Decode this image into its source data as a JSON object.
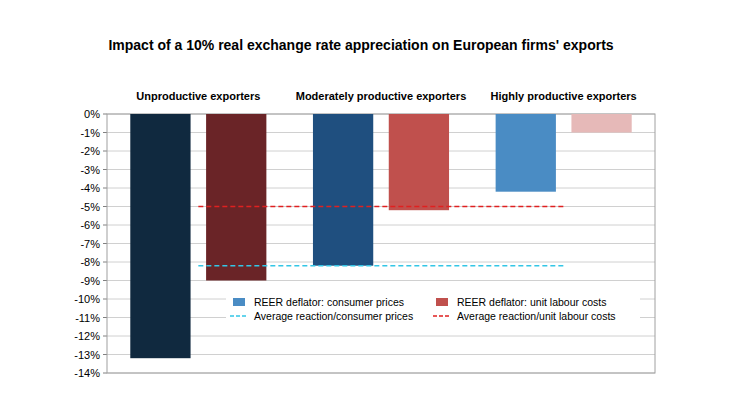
{
  "chart_data": {
    "type": "bar",
    "title": "Impact of a 10% real exchange rate appreciation on European firms' exports",
    "categories": [
      "Unproductive exporters",
      "Moderately productive exporters",
      "Highly productive exporters"
    ],
    "series": [
      {
        "name": "REER deflator: consumer prices",
        "type": "bar",
        "color": "#4a8cc4",
        "colors": [
          "#10293f",
          "#1f4f7f",
          "#4a8cc4"
        ],
        "values": [
          -13.2,
          -8.2,
          -4.2
        ]
      },
      {
        "name": "REER deflator: unit labour costs",
        "type": "bar",
        "color": "#c0504d",
        "colors": [
          "#6a2427",
          "#c0504d",
          "#e6b9b8"
        ],
        "values": [
          -9.0,
          -5.2,
          -1.0
        ]
      },
      {
        "name": "Average reaction/consumer prices",
        "type": "line",
        "line_style": "dashed",
        "color": "#33c6e6",
        "values": [
          -8.2,
          -8.2,
          -8.2
        ]
      },
      {
        "name": "Average reaction/unit labour costs",
        "type": "line",
        "line_style": "dashed",
        "color": "#e02020",
        "values": [
          -5.0,
          -5.0,
          -5.0
        ]
      }
    ],
    "ylim": [
      -14,
      0
    ],
    "yticks": [
      {
        "value": 0,
        "label": "0%"
      },
      {
        "value": -1,
        "label": "-1%"
      },
      {
        "value": -2,
        "label": "-2%"
      },
      {
        "value": -3,
        "label": "-3%"
      },
      {
        "value": -4,
        "label": "-4%"
      },
      {
        "value": -5,
        "label": "-5%"
      },
      {
        "value": -6,
        "label": "-6%"
      },
      {
        "value": -7,
        "label": "-7%"
      },
      {
        "value": -8,
        "label": "-8%"
      },
      {
        "value": -9,
        "label": "-9%"
      },
      {
        "value": -10,
        "label": "-10%"
      },
      {
        "value": -11,
        "label": "-11%"
      },
      {
        "value": -12,
        "label": "-12%"
      },
      {
        "value": -13,
        "label": "-13%"
      },
      {
        "value": -14,
        "label": "-14%"
      }
    ],
    "grid": true,
    "legend": "bottom"
  }
}
